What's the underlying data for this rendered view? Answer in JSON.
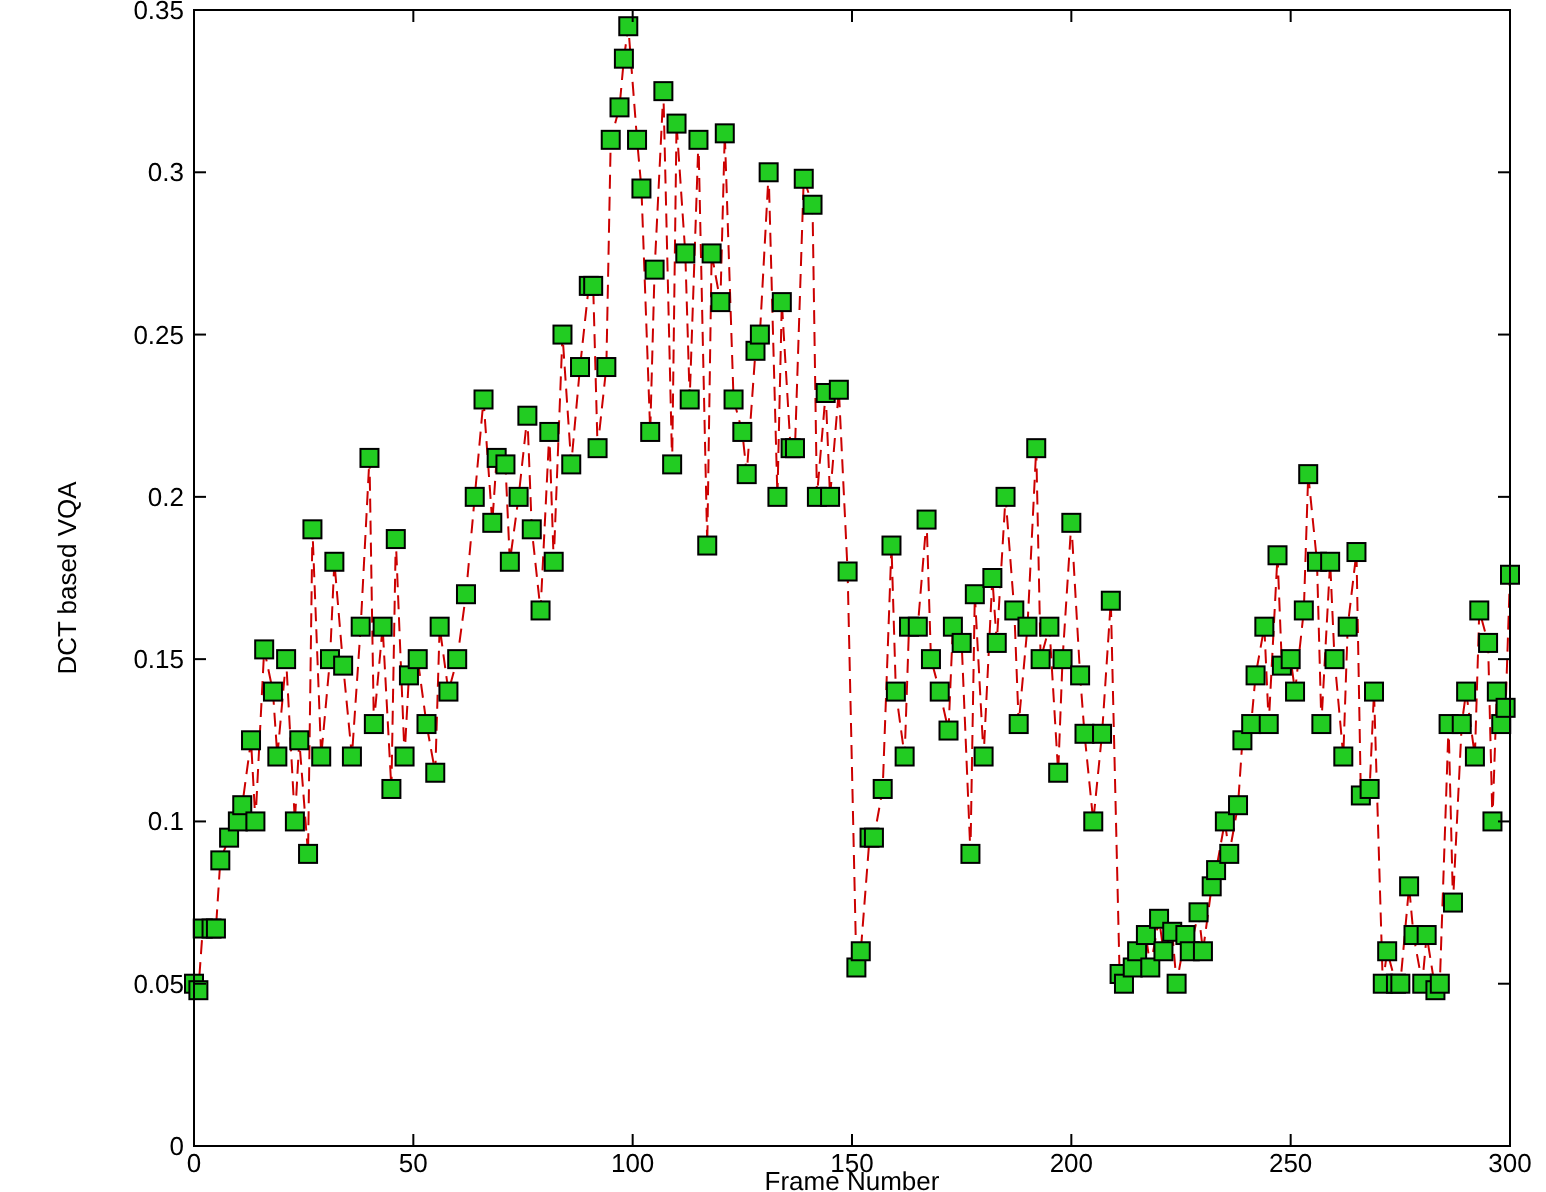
{
  "chart_data": {
    "type": "line",
    "xlabel": "Frame Number",
    "ylabel": "DCT based VQA",
    "xlim": [
      0,
      300
    ],
    "xticks": [
      0,
      50,
      100,
      150,
      200,
      250,
      300
    ],
    "ylim": [
      0,
      0.35
    ],
    "yticks": [
      0,
      0.05,
      0.1,
      0.15,
      0.2,
      0.25,
      0.3,
      0.35
    ],
    "marker": "square",
    "line_style": "dashed",
    "grid": false,
    "series": [
      {
        "color": "#cc0000",
        "colors": [
          "#22cc22",
          "#22cc22",
          "#22cc22",
          "#22cc22",
          "#22cc22",
          "#22cc22",
          "#22cc22",
          "#22cc22",
          "#22cc22",
          "#22cc22",
          "#22cc22",
          "#22cc22",
          "#22cc22",
          "#22cc22",
          "#22cc22",
          "#22cc22",
          "#22cc22",
          "#22cc22",
          "#22cc22",
          "#22cc22",
          "#22cc22",
          "#22cc22",
          "#22cc22",
          "#22cc22",
          "#22cc22",
          "#22cc22",
          "#22cc22",
          "#22cc22",
          "#22cc22",
          "#22cc22",
          "#22cc22",
          "#22cc22",
          "#22cc22",
          "#22cc22",
          "#22cc22",
          "#22cc22",
          "#22cc22",
          "#22cc22",
          "#22cc22",
          "#22cc22",
          "#22cc22",
          "#22cc22",
          "#22cc22",
          "#22cc22",
          "#22cc22",
          "#22cc22",
          "#22cc22",
          "#22cc22",
          "#22cc22",
          "#22cc22",
          "#22cc22",
          "#22cc22",
          "#22cc22",
          "#22cc22",
          "#22cc22",
          "#22cc22",
          "#22cc22",
          "#22cc22",
          "#22cc22",
          "#22cc22",
          "#22cc22",
          "#22cc22",
          "#22cc22",
          "#22cc22",
          "#22cc22",
          "#22cc22",
          "#22cc22",
          "#22cc22",
          "#22cc22",
          "#22cc22",
          "#22cc22",
          "#22cc22",
          "#22cc22",
          "#22cc22",
          "#22cc22",
          "#22cc22",
          "#22cc22",
          "#22cc22",
          "#22cc22",
          "#22cc22",
          "#22cc22",
          "#22cc22",
          "#22cc22",
          "#22cc22",
          "#22cc22",
          "#22cc22",
          "#22cc22",
          "#22cc22",
          "#22cc22",
          "#22cc22",
          "#22cc22",
          "#22cc22",
          "#22cc22",
          "#22cc22",
          "#22cc22",
          "#22cc22",
          "#22cc22",
          "#22cc22",
          "#22cc22",
          "#22cc22",
          "#22cc22",
          "#22cc22",
          "#22cc22",
          "#22cc22",
          "#22cc22",
          "#22cc22",
          "#22cc22",
          "#22cc22",
          "#22cc22",
          "#22cc22",
          "#22cc22",
          "#22cc22",
          "#22cc22",
          "#22cc22",
          "#22cc22",
          "#22cc22",
          "#22cc22",
          "#22cc22",
          "#22cc22",
          "#22cc22",
          "#22cc22",
          "#22cc22",
          "#22cc22",
          "#22cc22",
          "#22cc22",
          "#22cc22",
          "#22cc22",
          "#22cc22",
          "#22cc22",
          "#22cc22",
          "#22cc22",
          "#22cc22",
          "#22cc22",
          "#22cc22",
          "#22cc22",
          "#22cc22",
          "#22cc22",
          "#22cc22",
          "#22cc22",
          "#22cc22",
          "#22cc22",
          "#22cc22",
          "#22cc22",
          "#22cc22",
          "#22cc22",
          "#22cc22",
          "#22cc22",
          "#22cc22",
          "#22cc22",
          "#22cc22",
          "#22cc22",
          "#22cc22",
          "#22cc22",
          "#22cc22",
          "#22cc22",
          "#22cc22",
          "#22cc22",
          "#22cc22",
          "#22cc22",
          "#22cc22",
          "#22cc22",
          "#22cc22",
          "#22cc22",
          "#22cc22",
          "#22cc22",
          "#22cc22",
          "#22cc22",
          "#22cc22",
          "#22cc22",
          "#22cc22",
          "#22cc22",
          "#22cc22",
          "#22cc22",
          "#22cc22",
          "#22cc22",
          "#22cc22",
          "#22cc22",
          "#22cc22",
          "#22cc22",
          "#22cc22",
          "#22cc22",
          "#22cc22",
          "#22cc22",
          "#22cc22",
          "#22cc22",
          "#22cc22",
          "#22cc22",
          "#22cc22",
          "#22cc22",
          "#22cc22",
          "#22cc22"
        ],
        "x": [
          0,
          1,
          2,
          4,
          5,
          6,
          8,
          10,
          11,
          13,
          14,
          16,
          18,
          19,
          21,
          23,
          24,
          26,
          27,
          29,
          31,
          32,
          34,
          36,
          38,
          40,
          41,
          43,
          45,
          46,
          48,
          49,
          51,
          53,
          55,
          56,
          58,
          60,
          62,
          64,
          66,
          68,
          69,
          71,
          72,
          74,
          76,
          77,
          79,
          81,
          82,
          84,
          86,
          88,
          90,
          91,
          92,
          94,
          95,
          97,
          98,
          99,
          101,
          102,
          104,
          105,
          107,
          109,
          110,
          112,
          113,
          115,
          117,
          118,
          120,
          121,
          123,
          125,
          126,
          128,
          129,
          131,
          133,
          134,
          136,
          137,
          139,
          141,
          142,
          144,
          145,
          147,
          149,
          151,
          152,
          154,
          155,
          157,
          159,
          160,
          162,
          163,
          165,
          167,
          168,
          170,
          172,
          173,
          175,
          177,
          178,
          180,
          182,
          183,
          185,
          187,
          188,
          190,
          192,
          193,
          195,
          197,
          198,
          200,
          202,
          203,
          205,
          207,
          209,
          211,
          212,
          214,
          215,
          217,
          218,
          220,
          221,
          223,
          224,
          226,
          227,
          229,
          230,
          232,
          233,
          235,
          236,
          238,
          239,
          241,
          242,
          244,
          245,
          247,
          248,
          250,
          251,
          253,
          254,
          256,
          257,
          259,
          260,
          262,
          263,
          265,
          266,
          268,
          269,
          271,
          272,
          274,
          275,
          277,
          278,
          280,
          281,
          283,
          284,
          286,
          287,
          289,
          290,
          292,
          293,
          295,
          296,
          297,
          298,
          299,
          300
        ],
        "values": [
          0.05,
          0.048,
          0.067,
          0.067,
          0.067,
          0.088,
          0.095,
          0.1,
          0.105,
          0.125,
          0.1,
          0.153,
          0.14,
          0.12,
          0.15,
          0.1,
          0.125,
          0.09,
          0.19,
          0.12,
          0.15,
          0.18,
          0.148,
          0.12,
          0.16,
          0.212,
          0.13,
          0.16,
          0.11,
          0.187,
          0.12,
          0.145,
          0.15,
          0.13,
          0.115,
          0.16,
          0.14,
          0.15,
          0.17,
          0.2,
          0.23,
          0.192,
          0.212,
          0.21,
          0.18,
          0.2,
          0.225,
          0.19,
          0.165,
          0.22,
          0.18,
          0.25,
          0.21,
          0.24,
          0.265,
          0.265,
          0.215,
          0.24,
          0.31,
          0.32,
          0.335,
          0.345,
          0.31,
          0.295,
          0.22,
          0.27,
          0.325,
          0.21,
          0.315,
          0.275,
          0.23,
          0.31,
          0.185,
          0.275,
          0.26,
          0.312,
          0.23,
          0.22,
          0.207,
          0.245,
          0.25,
          0.3,
          0.2,
          0.26,
          0.215,
          0.215,
          0.298,
          0.29,
          0.2,
          0.232,
          0.2,
          0.233,
          0.177,
          0.055,
          0.06,
          0.095,
          0.095,
          0.11,
          0.185,
          0.14,
          0.12,
          0.16,
          0.16,
          0.193,
          0.15,
          0.14,
          0.128,
          0.16,
          0.155,
          0.09,
          0.17,
          0.12,
          0.175,
          0.155,
          0.2,
          0.165,
          0.13,
          0.16,
          0.215,
          0.15,
          0.16,
          0.115,
          0.15,
          0.192,
          0.145,
          0.127,
          0.1,
          0.127,
          0.168,
          0.053,
          0.05,
          0.055,
          0.06,
          0.065,
          0.055,
          0.07,
          0.06,
          0.066,
          0.05,
          0.065,
          0.06,
          0.072,
          0.06,
          0.08,
          0.085,
          0.1,
          0.09,
          0.105,
          0.125,
          0.13,
          0.145,
          0.16,
          0.13,
          0.182,
          0.148,
          0.15,
          0.14,
          0.165,
          0.207,
          0.18,
          0.13,
          0.18,
          0.15,
          0.12,
          0.16,
          0.183,
          0.108,
          0.11,
          0.14,
          0.05,
          0.06,
          0.05,
          0.05,
          0.08,
          0.065,
          0.05,
          0.065,
          0.048,
          0.05,
          0.13,
          0.075,
          0.13,
          0.14,
          0.12,
          0.165,
          0.155,
          0.1,
          0.14,
          0.13,
          0.135,
          0.176
        ]
      }
    ]
  }
}
